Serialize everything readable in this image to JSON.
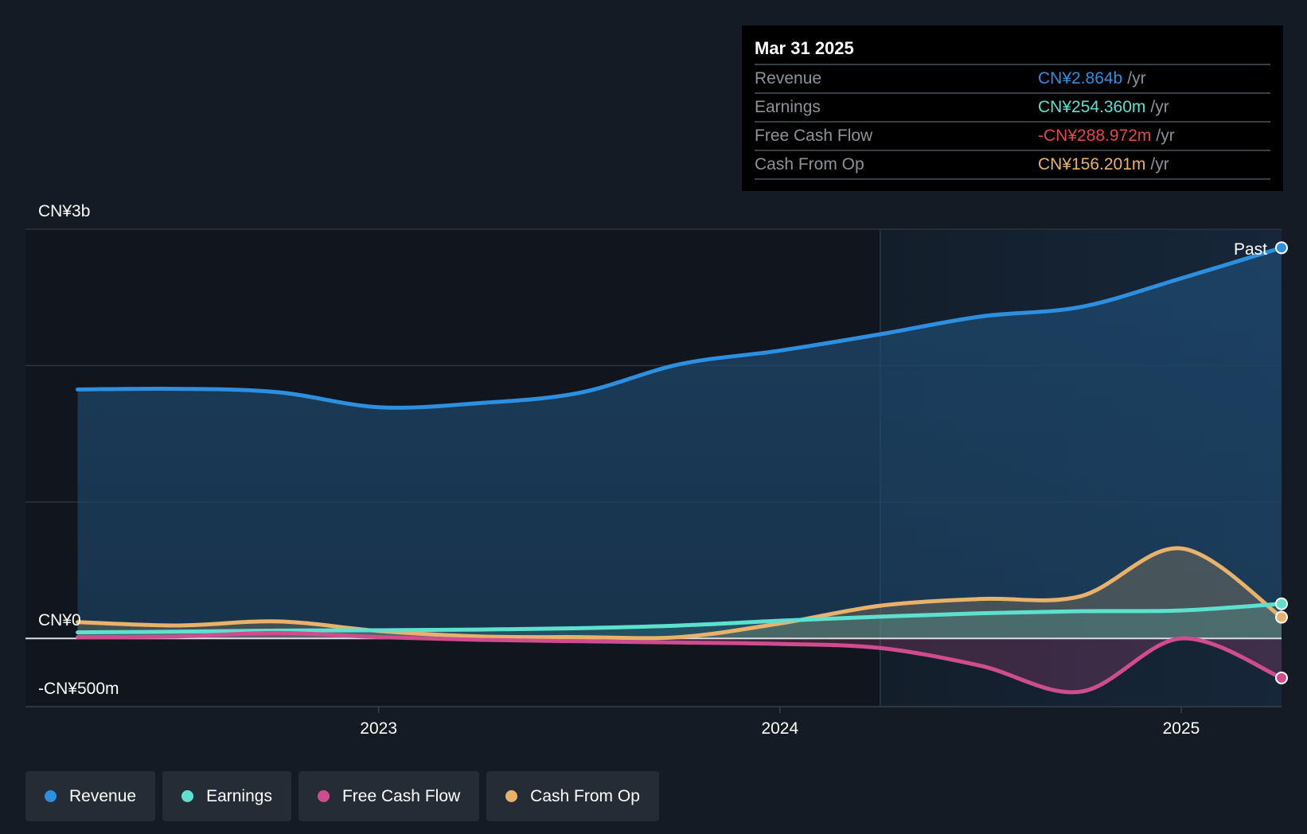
{
  "tooltip": {
    "date": "Mar 31 2025",
    "rows": [
      {
        "label": "Revenue",
        "value": "CN¥2.864b",
        "unit": "/yr",
        "color": "#2d8fe0"
      },
      {
        "label": "Earnings",
        "value": "CN¥254.360m",
        "unit": "/yr",
        "color": "#5ee0cf"
      },
      {
        "label": "Free Cash Flow",
        "value": "-CN¥288.972m",
        "unit": "/yr",
        "color": "#e2474d"
      },
      {
        "label": "Cash From Op",
        "value": "CN¥156.201m",
        "unit": "/yr",
        "color": "#e9b26b"
      }
    ]
  },
  "legend": [
    {
      "label": "Revenue",
      "color": "#2d8fe0"
    },
    {
      "label": "Earnings",
      "color": "#5ee0cf"
    },
    {
      "label": "Free Cash Flow",
      "color": "#cf4c8e"
    },
    {
      "label": "Cash From Op",
      "color": "#e9b26b"
    }
  ],
  "chart_data": {
    "type": "line",
    "title": "",
    "y_tick_labels": {
      "top": "CN¥3b",
      "zero": "CN¥0",
      "bottom": "-CN¥500m"
    },
    "ylim": [
      -500,
      3000
    ],
    "y_gridlines": [
      3000,
      2000,
      1000,
      0
    ],
    "x_tick_labels": [
      "2023",
      "2024",
      "2025"
    ],
    "x_ticks": [
      2023.0,
      2024.0,
      2025.0
    ],
    "xlim": [
      2022.12,
      2025.25
    ],
    "past_label": "Past",
    "past_start": 2024.25,
    "series": [
      {
        "name": "Revenue",
        "color": "#2d8fe0",
        "x": [
          2022.25,
          2022.5,
          2022.75,
          2023.0,
          2023.25,
          2023.5,
          2023.75,
          2024.0,
          2024.25,
          2024.5,
          2024.75,
          2025.0,
          2025.25
        ],
        "values": [
          1825,
          1830,
          1805,
          1695,
          1725,
          1800,
          2010,
          2110,
          2230,
          2360,
          2430,
          2640,
          2864
        ]
      },
      {
        "name": "Earnings",
        "color": "#5ee0cf",
        "x": [
          2022.25,
          2022.5,
          2022.75,
          2023.0,
          2023.25,
          2023.5,
          2023.75,
          2024.0,
          2024.25,
          2024.5,
          2024.75,
          2025.0,
          2025.25
        ],
        "values": [
          45,
          50,
          58,
          60,
          65,
          75,
          95,
          130,
          160,
          185,
          200,
          205,
          254
        ]
      },
      {
        "name": "Free Cash Flow",
        "color": "#cf4c8e",
        "x": [
          2022.25,
          2022.5,
          2022.75,
          2023.0,
          2023.25,
          2023.5,
          2023.75,
          2024.0,
          2024.25,
          2024.5,
          2024.75,
          2025.0,
          2025.25
        ],
        "values": [
          10,
          15,
          40,
          10,
          -10,
          -20,
          -30,
          -40,
          -70,
          -200,
          -390,
          0,
          -289
        ]
      },
      {
        "name": "Cash From Op",
        "color": "#e9b26b",
        "x": [
          2022.25,
          2022.5,
          2022.75,
          2023.0,
          2023.25,
          2023.5,
          2023.75,
          2024.0,
          2024.25,
          2024.5,
          2024.75,
          2025.0,
          2025.25
        ],
        "values": [
          120,
          95,
          125,
          55,
          15,
          10,
          10,
          110,
          240,
          290,
          310,
          660,
          156
        ]
      }
    ]
  }
}
